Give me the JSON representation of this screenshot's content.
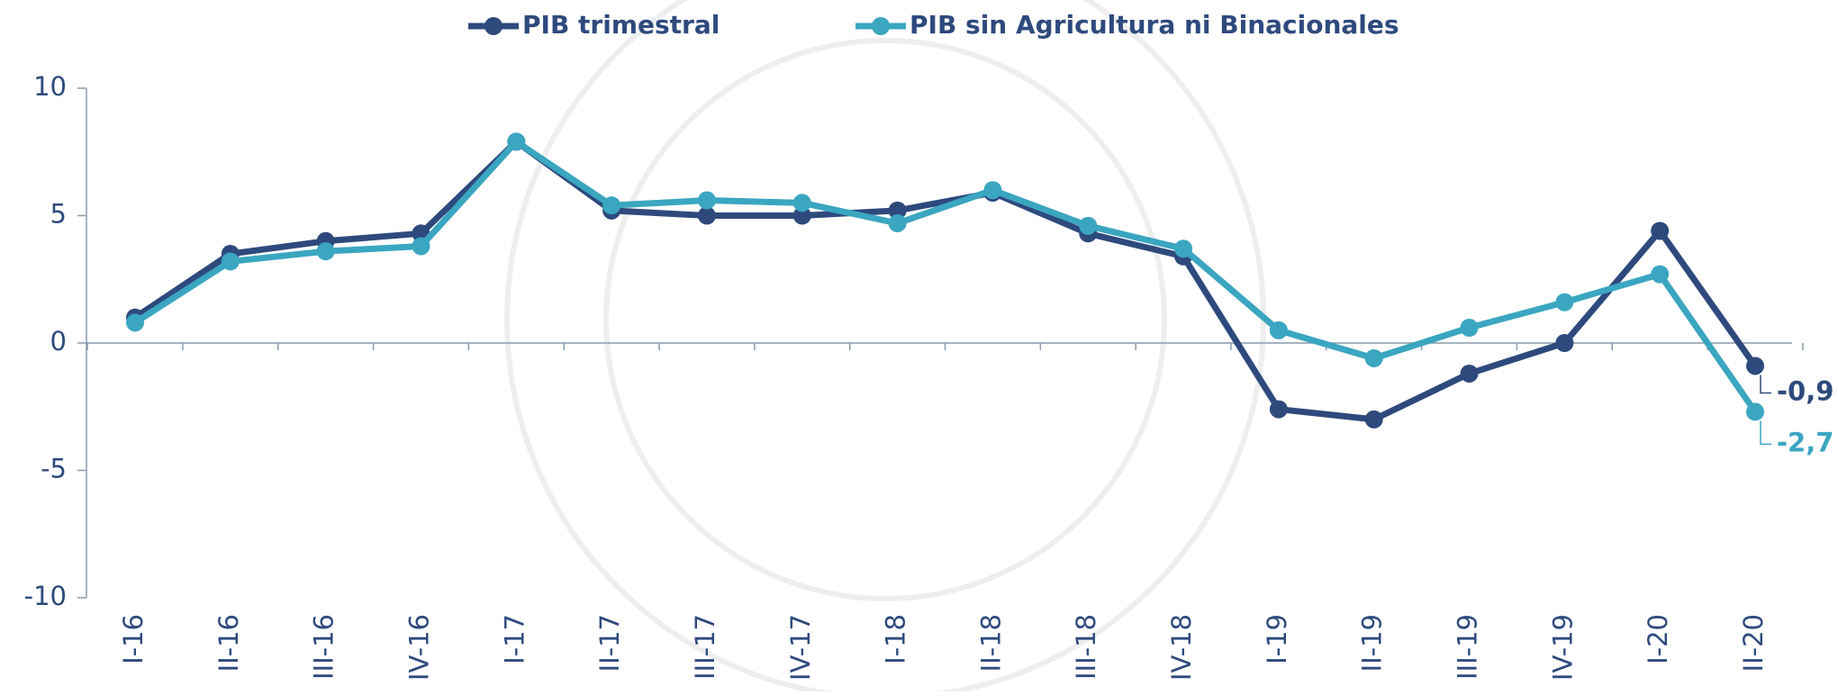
{
  "chart_data": {
    "type": "line",
    "categories": [
      "I-16",
      "II-16",
      "III-16",
      "IV-16",
      "I-17",
      "II-17",
      "III-17",
      "IV-17",
      "I-18",
      "II-18",
      "III-18",
      "IV-18",
      "I-19",
      "II-19",
      "III-19",
      "IV-19",
      "I-20",
      "II-20"
    ],
    "series": [
      {
        "name": "PIB trimestral",
        "color": "#2e4a7d",
        "values": [
          1.0,
          3.5,
          4.0,
          4.3,
          7.9,
          5.2,
          5.0,
          5.0,
          5.2,
          5.9,
          4.3,
          3.4,
          -2.6,
          -3.0,
          -1.2,
          0.0,
          4.4,
          -0.9
        ],
        "value_labels": [
          null,
          null,
          null,
          null,
          null,
          null,
          null,
          null,
          null,
          null,
          null,
          null,
          null,
          null,
          null,
          null,
          null,
          "-0,9"
        ]
      },
      {
        "name": "PIB sin Agricultura ni Binacionales",
        "color": "#3aa6c0",
        "values": [
          0.8,
          3.2,
          3.6,
          3.8,
          7.9,
          5.4,
          5.6,
          5.5,
          4.7,
          6.0,
          4.6,
          3.7,
          0.5,
          -0.6,
          0.6,
          1.6,
          2.7,
          -2.7
        ],
        "value_labels": [
          null,
          null,
          null,
          null,
          null,
          null,
          null,
          null,
          null,
          null,
          null,
          null,
          null,
          null,
          null,
          null,
          null,
          "-2,7"
        ]
      }
    ],
    "ylim": [
      -10,
      10
    ],
    "yticks": [
      10,
      5,
      0,
      -5,
      -10
    ],
    "legend": "top"
  }
}
